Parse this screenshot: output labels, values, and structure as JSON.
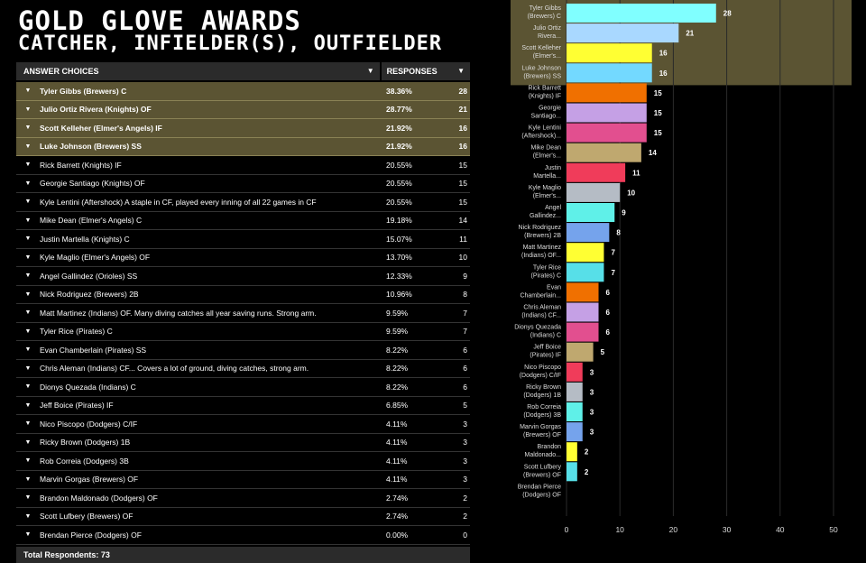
{
  "title_line1": "GOLD GLOVE AWARDS",
  "title_line2": "CATCHER, INFIELDER(S), OUTFIELDER",
  "table": {
    "col_answer": "ANSWER CHOICES",
    "col_responses": "RESPONSES",
    "footer": "Total Respondents: 73",
    "rows": [
      {
        "label": "Tyler Gibbs (Brewers) C",
        "pct": "38.36%",
        "count": "28",
        "highlight": true
      },
      {
        "label": "Julio Ortiz Rivera (Knights) OF",
        "pct": "28.77%",
        "count": "21",
        "highlight": true
      },
      {
        "label": "Scott Kelleher (Elmer's Angels) IF",
        "pct": "21.92%",
        "count": "16",
        "highlight": true
      },
      {
        "label": "Luke Johnson (Brewers) SS",
        "pct": "21.92%",
        "count": "16",
        "highlight": true
      },
      {
        "label": "Rick Barrett (Knights) IF",
        "pct": "20.55%",
        "count": "15",
        "highlight": false
      },
      {
        "label": "Georgie Santiago (Knights) OF",
        "pct": "20.55%",
        "count": "15",
        "highlight": false
      },
      {
        "label": "Kyle Lentini (Aftershock) A staple in CF, played every inning of all 22 games in CF",
        "pct": "20.55%",
        "count": "15",
        "highlight": false
      },
      {
        "label": "Mike Dean (Elmer's Angels) C",
        "pct": "19.18%",
        "count": "14",
        "highlight": false
      },
      {
        "label": "Justin Martella (Knights) C",
        "pct": "15.07%",
        "count": "11",
        "highlight": false
      },
      {
        "label": "Kyle Maglio (Elmer's Angels) OF",
        "pct": "13.70%",
        "count": "10",
        "highlight": false
      },
      {
        "label": "Angel Gallindez (Orioles) SS",
        "pct": "12.33%",
        "count": "9",
        "highlight": false
      },
      {
        "label": "Nick Rodriguez (Brewers) 2B",
        "pct": "10.96%",
        "count": "8",
        "highlight": false
      },
      {
        "label": "Matt Martinez (Indians) OF.  Many diving catches all year saving runs.  Strong arm.",
        "pct": "9.59%",
        "count": "7",
        "highlight": false
      },
      {
        "label": "Tyler Rice (Pirates) C",
        "pct": "9.59%",
        "count": "7",
        "highlight": false
      },
      {
        "label": "Evan Chamberlain (Pirates) SS",
        "pct": "8.22%",
        "count": "6",
        "highlight": false
      },
      {
        "label": "Chris Aleman (Indians) CF... Covers a lot of ground, diving catches, strong arm.",
        "pct": "8.22%",
        "count": "6",
        "highlight": false
      },
      {
        "label": "Dionys Quezada (Indians) C",
        "pct": "8.22%",
        "count": "6",
        "highlight": false
      },
      {
        "label": "Jeff Boice (Pirates) IF",
        "pct": "6.85%",
        "count": "5",
        "highlight": false
      },
      {
        "label": "Nico Piscopo (Dodgers) C/IF",
        "pct": "4.11%",
        "count": "3",
        "highlight": false
      },
      {
        "label": "Ricky Brown (Dodgers) 1B",
        "pct": "4.11%",
        "count": "3",
        "highlight": false
      },
      {
        "label": "Rob Correia (Dodgers) 3B",
        "pct": "4.11%",
        "count": "3",
        "highlight": false
      },
      {
        "label": "Marvin Gorgas (Brewers) OF",
        "pct": "4.11%",
        "count": "3",
        "highlight": false
      },
      {
        "label": "Brandon Maldonado (Dodgers) OF",
        "pct": "2.74%",
        "count": "2",
        "highlight": false
      },
      {
        "label": "Scott Lufbery (Brewers) OF",
        "pct": "2.74%",
        "count": "2",
        "highlight": false
      },
      {
        "label": "Brendan Pierce (Dodgers) OF",
        "pct": "0.00%",
        "count": "0",
        "highlight": false
      }
    ]
  },
  "colors": {
    "highlight_row": "#5b5433",
    "highlight_band": "#5b5433"
  },
  "chart_data": {
    "type": "bar",
    "orientation": "horizontal",
    "categories": [
      [
        "Tyler Gibbs",
        "(Brewers) C"
      ],
      [
        "Julio Ortiz",
        "Rivera..."
      ],
      [
        "Scott Kelleher",
        "(Elmer's..."
      ],
      [
        "Luke Johnson",
        "(Brewers) SS"
      ],
      [
        "Rick Barrett",
        "(Knights) IF"
      ],
      [
        "Georgie",
        "Santiago..."
      ],
      [
        "Kyle Lentini",
        "(Aftershock)..."
      ],
      [
        "Mike Dean",
        "(Elmer's..."
      ],
      [
        "Justin",
        "Martella..."
      ],
      [
        "Kyle Maglio",
        "(Elmer's..."
      ],
      [
        "Angel",
        "Gallindez..."
      ],
      [
        "Nick Rodriguez",
        "(Brewers) 2B"
      ],
      [
        "Matt Martinez",
        "(Indians) OF..."
      ],
      [
        "Tyler Rice",
        "(Pirates) C"
      ],
      [
        "Evan",
        "Chamberlain..."
      ],
      [
        "Chris Aleman",
        "(Indians) CF..."
      ],
      [
        "Dionys Quezada",
        "(Indians) C"
      ],
      [
        "Jeff Boice",
        "(Pirates) IF"
      ],
      [
        "Nico Piscopo",
        "(Dodgers) C/IF"
      ],
      [
        "Ricky Brown",
        "(Dodgers) 1B"
      ],
      [
        "Rob Correia",
        "(Dodgers) 3B"
      ],
      [
        "Marvin Gorgas",
        "(Brewers) OF"
      ],
      [
        "Brandon",
        "Maldonado..."
      ],
      [
        "Scott Lufbery",
        "(Brewers) OF"
      ],
      [
        "Brendan Pierce",
        "(Dodgers) OF"
      ]
    ],
    "values": [
      28,
      21,
      16,
      16,
      15,
      15,
      15,
      14,
      11,
      10,
      9,
      8,
      7,
      7,
      6,
      6,
      6,
      5,
      3,
      3,
      3,
      3,
      2,
      2,
      0
    ],
    "bar_colors": [
      "#80ffff",
      "#a9d8ff",
      "#ffff33",
      "#73d9ff",
      "#f07000",
      "#c5a0e5",
      "#e24f8f",
      "#bfa86f",
      "#f03c5a",
      "#b5bcc5",
      "#5ff0e8",
      "#75a3ec",
      "#ffff33",
      "#57dfe8",
      "#f07000",
      "#c5a0e5",
      "#e24f8f",
      "#bfa86f",
      "#f03c5a",
      "#b5bcc5",
      "#5ff0e8",
      "#75a3ec",
      "#ffff33",
      "#57dfe8",
      "#888888"
    ],
    "highlight_count": 4,
    "xlim": [
      0,
      50
    ],
    "xticks": [
      0,
      10,
      20,
      30,
      40,
      50
    ],
    "grid": true,
    "title": "",
    "xlabel": "",
    "ylabel": ""
  }
}
